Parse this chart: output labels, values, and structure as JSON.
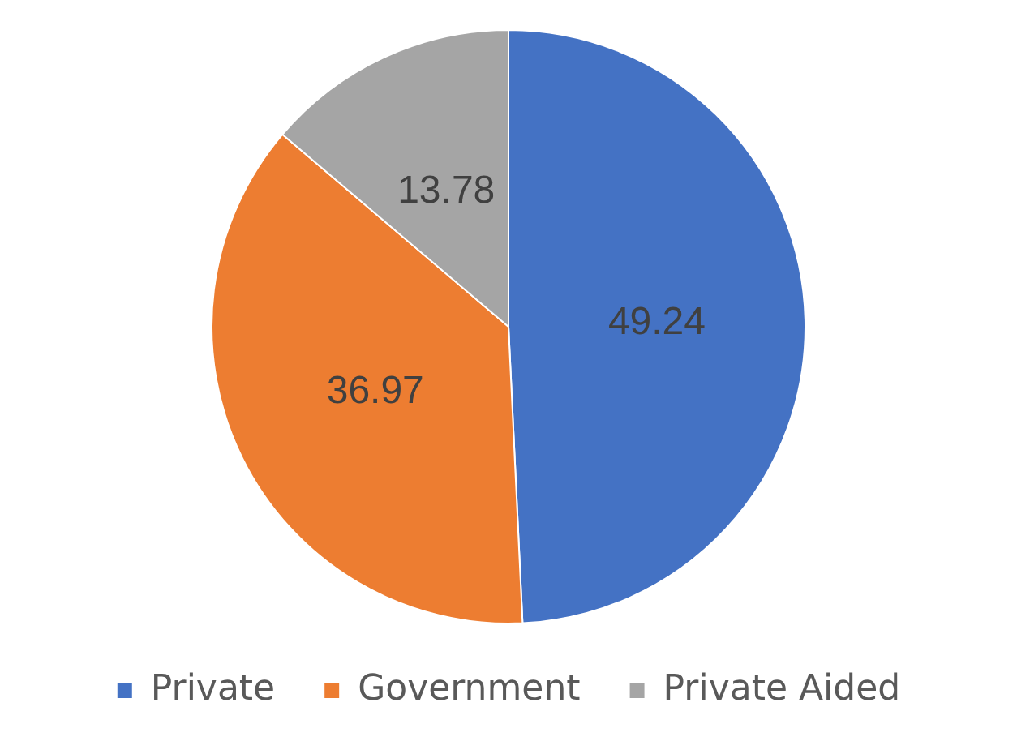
{
  "chart_data": {
    "type": "pie",
    "categories": [
      "Private",
      "Government",
      "Private Aided"
    ],
    "values": [
      49.24,
      36.97,
      13.78
    ],
    "colors": [
      "#4472c4",
      "#ed7d31",
      "#a5a5a5"
    ],
    "data_labels": true,
    "legend": "bottom"
  }
}
